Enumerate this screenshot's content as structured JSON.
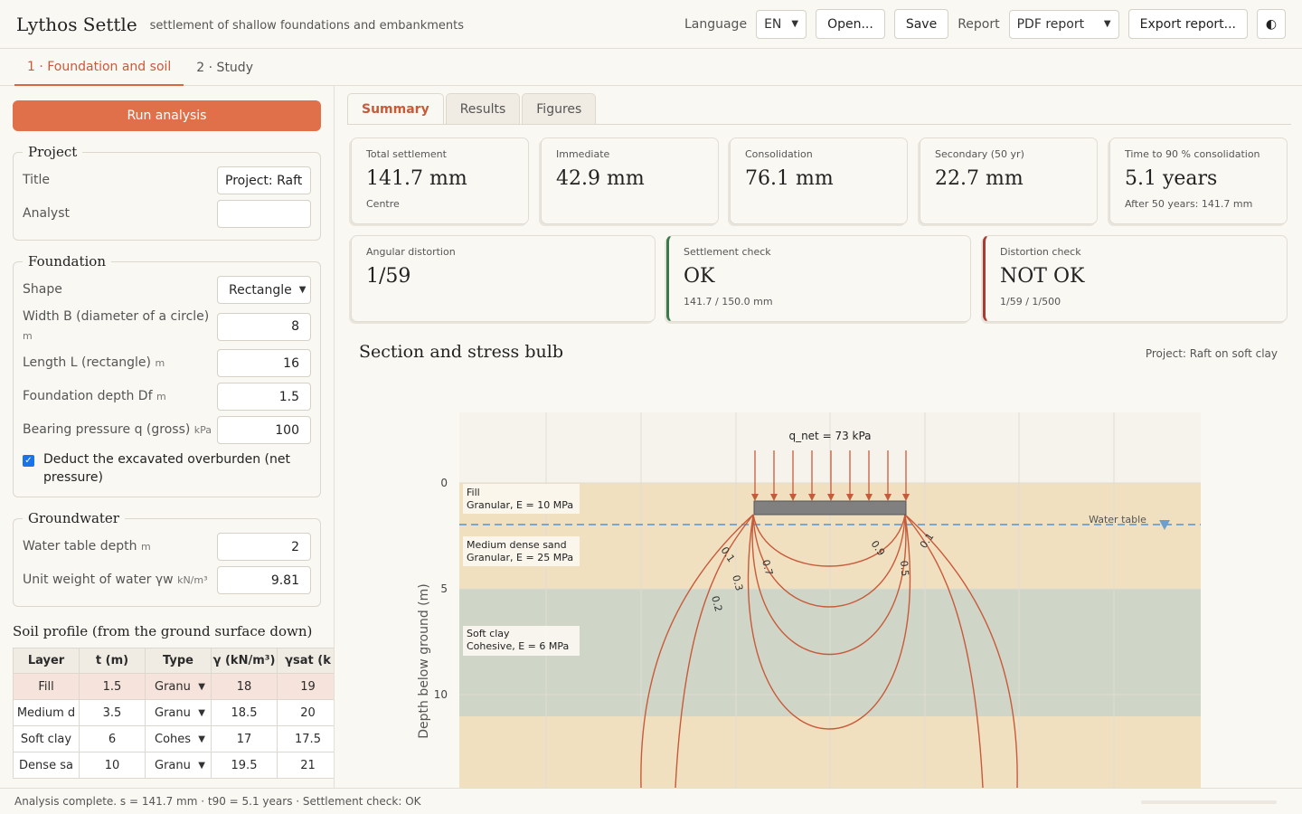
{
  "header": {
    "title": "Lythos Settle",
    "subtitle": "settlement of shallow foundations and embankments",
    "language_label": "Language",
    "language_value": "EN",
    "open_label": "Open...",
    "save_label": "Save",
    "report_label": "Report",
    "report_value": "PDF report",
    "export_label": "Export report...",
    "theme_icon": "◐"
  },
  "main_tabs": [
    {
      "label": "1 · Foundation and soil"
    },
    {
      "label": "2 · Study"
    }
  ],
  "sidebar": {
    "run_label": "Run analysis",
    "project": {
      "legend": "Project",
      "title_label": "Title",
      "title_value": "Project: Raft",
      "analyst_label": "Analyst",
      "analyst_value": ""
    },
    "foundation": {
      "legend": "Foundation",
      "shape_label": "Shape",
      "shape_value": "Rectangle",
      "width_label": "Width B (diameter of a circle)",
      "width_unit": "m",
      "width_value": "8",
      "length_label": "Length L (rectangle)",
      "length_unit": "m",
      "length_value": "16",
      "depth_label": "Foundation depth Df",
      "depth_unit": "m",
      "depth_value": "1.5",
      "pressure_label": "Bearing pressure q (gross)",
      "pressure_unit": "kPa",
      "pressure_value": "100",
      "deduct_label": "Deduct the excavated overburden (net pressure)",
      "deduct_checked": true
    },
    "groundwater": {
      "legend": "Groundwater",
      "wt_label": "Water table depth",
      "wt_unit": "m",
      "wt_value": "2",
      "gw_label": "Unit weight of water γw",
      "gw_unit": "kN/m³",
      "gw_value": "9.81"
    },
    "soil_profile": {
      "title": "Soil profile (from the ground surface down)",
      "headers": [
        "Layer",
        "t (m)",
        "Type",
        "γ (kN/m³)",
        "γsat (k"
      ],
      "rows": [
        {
          "layer": "Fill",
          "t": "1.5",
          "type": "Granu",
          "gamma": "18",
          "gsat": "19"
        },
        {
          "layer": "Medium d",
          "t": "3.5",
          "type": "Granu",
          "gamma": "18.5",
          "gsat": "20"
        },
        {
          "layer": "Soft clay",
          "t": "6",
          "type": "Cohes",
          "gamma": "17",
          "gsat": "17.5"
        },
        {
          "layer": "Dense sa",
          "t": "10",
          "type": "Granu",
          "gamma": "19.5",
          "gsat": "21"
        }
      ]
    }
  },
  "sub_tabs": [
    {
      "label": "Summary"
    },
    {
      "label": "Results"
    },
    {
      "label": "Figures"
    }
  ],
  "cards": {
    "total": {
      "label": "Total settlement",
      "value": "141.7 mm",
      "note": "Centre"
    },
    "immediate": {
      "label": "Immediate",
      "value": "42.9 mm"
    },
    "consolidation": {
      "label": "Consolidation",
      "value": "76.1 mm"
    },
    "secondary": {
      "label": "Secondary (50 yr)",
      "value": "22.7 mm"
    },
    "t90": {
      "label": "Time to 90 % consolidation",
      "value": "5.1 years",
      "note": "After 50 years: 141.7 mm"
    },
    "angular": {
      "label": "Angular distortion",
      "value": "1/59"
    },
    "settlement_check": {
      "label": "Settlement check",
      "value": "OK",
      "note": "141.7 / 150.0 mm",
      "color": "#3a7a4a"
    },
    "distortion_check": {
      "label": "Distortion check",
      "value": "NOT OK",
      "note": "1/59 / 1/500",
      "color": "#a83c32"
    }
  },
  "figure": {
    "title": "Section and stress bulb",
    "project": "Project: Raft on soft clay",
    "ylabel": "Depth below ground (m)",
    "yticks": [
      "0",
      "5",
      "10"
    ],
    "load_label": "q_net = 73 kPa",
    "water_table_label": "Water table",
    "layers": [
      {
        "name": "Fill",
        "desc": "Granular, E = 10 MPa",
        "color": "#f0e0c0"
      },
      {
        "name": "Medium dense sand",
        "desc": "Granular, E = 25 MPa",
        "color": "#f0e0c0"
      },
      {
        "name": "Soft clay",
        "desc": "Cohesive, E = 6 MPa",
        "color": "#cfd6c8"
      }
    ],
    "contour_labels": [
      "0.1",
      "0.7",
      "0.3",
      "0.2",
      "0.9",
      "0.5",
      "0.1"
    ],
    "colors": {
      "contour": "#c85a3a",
      "water": "#6a9fd0",
      "footing": "#808080"
    }
  },
  "status": {
    "text": "Analysis complete. s = 141.7 mm · t90 = 5.1 years · Settlement check: OK"
  }
}
